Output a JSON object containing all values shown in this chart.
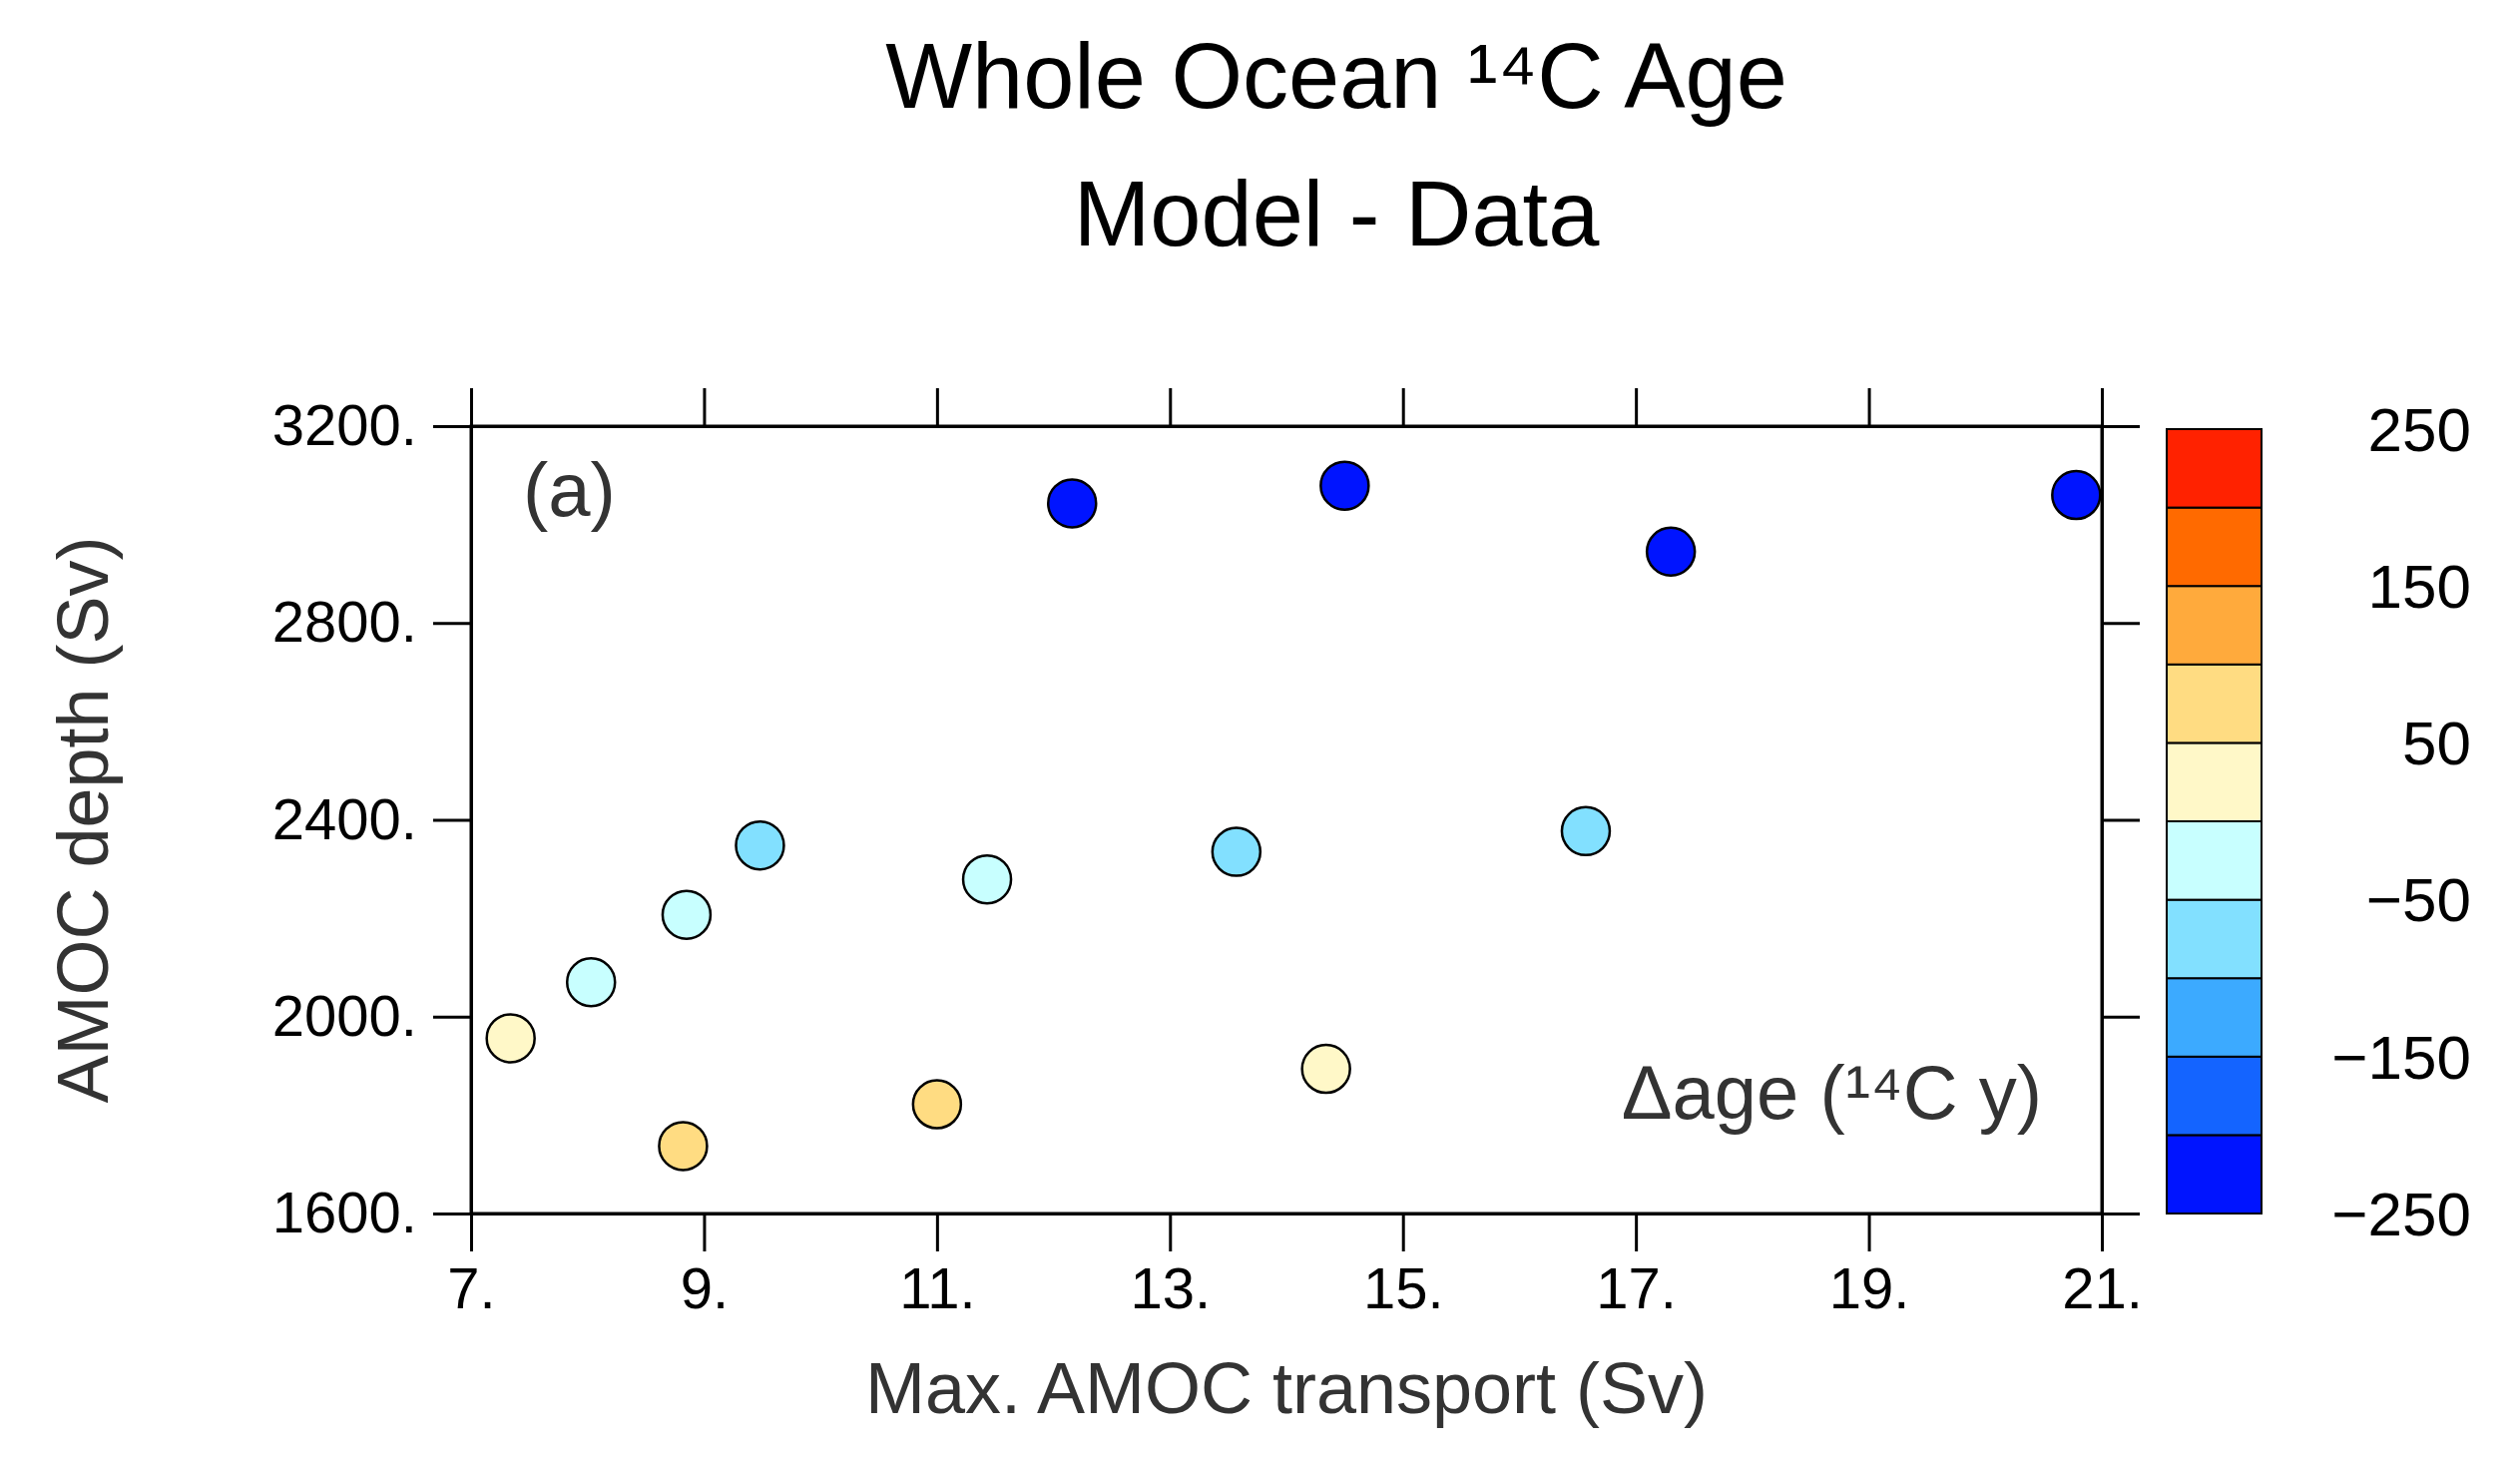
{
  "chart_data": {
    "type": "scatter",
    "title": "Whole Ocean ¹⁴C Age",
    "subtitle": "Model - Data",
    "xlabel": "Max. AMOC transport (Sv)",
    "ylabel": "AMOC depth (Sv)",
    "clabel": "Δage (¹⁴C y)",
    "annotations": [
      "(a)"
    ],
    "series": [
      {
        "x": [
          7.34,
          8.03,
          8.85,
          9.48,
          8.82,
          11.0,
          11.43,
          12.16,
          13.57,
          14.5,
          14.34,
          16.57,
          17.3,
          20.78
        ],
        "values": [
          1956,
          2070,
          2207,
          2348,
          1737,
          1822,
          2279,
          3043,
          2335,
          3079,
          1894,
          2377,
          2945,
          3060
        ],
        "cvalues": [
          25,
          -25,
          -25,
          -75,
          75,
          75,
          -25,
          -225,
          -75,
          -225,
          25,
          -75,
          -225,
          -225
        ]
      }
    ],
    "colors": [
      "#0014ff",
      "#1464ff",
      "#3caaff",
      "#82e0ff",
      "#c8ffff",
      "#fff8c8",
      "#ffdc82",
      "#ffaa3c",
      "#ff6a00",
      "#ff2200"
    ],
    "marker": "circle",
    "grid": false,
    "xlim": [
      7,
      21
    ],
    "xticks": [
      {
        "value": 7,
        "label": "7."
      },
      {
        "value": 9,
        "label": "9."
      },
      {
        "value": 11,
        "label": "11."
      },
      {
        "value": 13,
        "label": "13."
      },
      {
        "value": 15,
        "label": "15."
      },
      {
        "value": 17,
        "label": "17."
      },
      {
        "value": 19,
        "label": "19."
      },
      {
        "value": 21,
        "label": "21."
      }
    ],
    "ylim": [
      1600,
      3200
    ],
    "yticks": [
      {
        "value": 1600,
        "label": "1600."
      },
      {
        "value": 2000,
        "label": "2000."
      },
      {
        "value": 2400,
        "label": "2400."
      },
      {
        "value": 2800,
        "label": "2800."
      },
      {
        "value": 3200,
        "label": "3200."
      }
    ],
    "clim": [
      -250,
      250
    ],
    "cticks": [
      {
        "value": -250,
        "label": "−250"
      },
      {
        "value": -200,
        "label": null
      },
      {
        "value": -150,
        "label": "−150"
      },
      {
        "value": -100,
        "label": null
      },
      {
        "value": -50,
        "label": "−50"
      },
      {
        "value": 0,
        "label": null
      },
      {
        "value": 50,
        "label": "50"
      },
      {
        "value": 100,
        "label": null
      },
      {
        "value": 150,
        "label": "150"
      },
      {
        "value": 200,
        "label": null
      },
      {
        "value": 250,
        "label": "250"
      }
    ]
  }
}
